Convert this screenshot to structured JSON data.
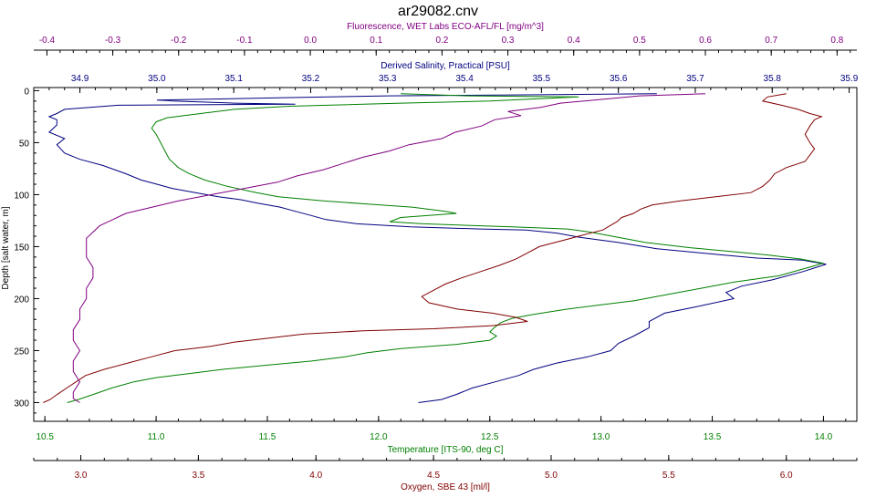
{
  "chart_data": {
    "type": "line",
    "title": "ar29082.cnv",
    "grid": false,
    "legend": "none",
    "y_axis": {
      "label": "Depth [salt water, m]",
      "range": [
        -3,
        318
      ],
      "inverted": true,
      "ticks": [
        0,
        50,
        100,
        150,
        200,
        250,
        300
      ]
    },
    "x_axes": [
      {
        "id": "fluor",
        "position": "top-outer",
        "label": "Fluorescence, WET Labs ECO-AFL/FL [mg/m^3]",
        "color": "#800080",
        "range": [
          -0.42,
          0.83
        ],
        "ticks": [
          -0.4,
          -0.3,
          -0.2,
          -0.1,
          0.0,
          0.1,
          0.2,
          0.3,
          0.4,
          0.5,
          0.6,
          0.7,
          0.8
        ],
        "tick_labels": [
          "-0.4",
          "-0.3",
          "-0.2",
          "-0.1",
          "0.0",
          "0.1",
          "0.2",
          "0.3",
          "0.4",
          "0.5",
          "0.6",
          "0.7",
          "0.8"
        ]
      },
      {
        "id": "sal",
        "position": "top-inner",
        "label": "Derived Salinity, Practical [PSU]",
        "color": "#000080",
        "range": [
          34.84,
          35.91
        ],
        "ticks": [
          34.9,
          35.0,
          35.1,
          35.2,
          35.3,
          35.4,
          35.5,
          35.6,
          35.7,
          35.8,
          35.9
        ],
        "tick_labels": [
          "34.9",
          "35.0",
          "35.1",
          "35.2",
          "35.3",
          "35.4",
          "35.5",
          "35.6",
          "35.7",
          "35.8",
          "35.9"
        ]
      },
      {
        "id": "temp",
        "position": "bottom-inner",
        "label": "Temperature [ITS-90, deg C]",
        "color": "#008000",
        "range": [
          10.45,
          14.15
        ],
        "ticks": [
          10.5,
          11.0,
          11.5,
          12.0,
          12.5,
          13.0,
          13.5,
          14.0
        ],
        "tick_labels": [
          "10.5",
          "11.0",
          "11.5",
          "12.0",
          "12.5",
          "13.0",
          "13.5",
          "14.0"
        ]
      },
      {
        "id": "oxy",
        "position": "bottom-outer",
        "label": "Oxygen, SBE 43 [ml/l]",
        "color": "#800000",
        "range": [
          2.8,
          6.3
        ],
        "ticks": [
          3.0,
          3.5,
          4.0,
          4.5,
          5.0,
          5.5,
          6.0
        ],
        "tick_labels": [
          "3.0",
          "3.5",
          "4.0",
          "4.5",
          "5.0",
          "5.5",
          "6.0"
        ]
      }
    ],
    "series": [
      {
        "axis": "sal",
        "color": "#000080",
        "points": [
          [
            35.65,
            3
          ],
          [
            35.48,
            4
          ],
          [
            35.3,
            5
          ],
          [
            35.15,
            7
          ],
          [
            35.0,
            9
          ],
          [
            35.02,
            10
          ],
          [
            35.1,
            12
          ],
          [
            35.18,
            13
          ],
          [
            34.95,
            14
          ],
          [
            34.88,
            18
          ],
          [
            34.87,
            22
          ],
          [
            34.86,
            25
          ],
          [
            34.87,
            28
          ],
          [
            34.87,
            33
          ],
          [
            34.86,
            40
          ],
          [
            34.88,
            46
          ],
          [
            34.87,
            52
          ],
          [
            34.88,
            60
          ],
          [
            34.9,
            66
          ],
          [
            34.93,
            72
          ],
          [
            34.96,
            80
          ],
          [
            34.98,
            86
          ],
          [
            35.0,
            90
          ],
          [
            35.02,
            94
          ],
          [
            35.05,
            98
          ],
          [
            35.08,
            102
          ],
          [
            35.11,
            105
          ],
          [
            35.13,
            108
          ],
          [
            35.16,
            112
          ],
          [
            35.18,
            116
          ],
          [
            35.2,
            120
          ],
          [
            35.22,
            124
          ],
          [
            35.26,
            128
          ],
          [
            35.33,
            131
          ],
          [
            35.42,
            133
          ],
          [
            35.48,
            134
          ],
          [
            35.52,
            137
          ],
          [
            35.55,
            141
          ],
          [
            35.6,
            146
          ],
          [
            35.65,
            152
          ],
          [
            35.72,
            157
          ],
          [
            35.78,
            161
          ],
          [
            35.84,
            163
          ],
          [
            35.87,
            167
          ],
          [
            35.84,
            174
          ],
          [
            35.8,
            182
          ],
          [
            35.76,
            188
          ],
          [
            35.74,
            194
          ],
          [
            35.75,
            200
          ],
          [
            35.7,
            208
          ],
          [
            35.66,
            214
          ],
          [
            35.64,
            222
          ],
          [
            35.64,
            228
          ],
          [
            35.62,
            236
          ],
          [
            35.6,
            243
          ],
          [
            35.59,
            250
          ],
          [
            35.56,
            256
          ],
          [
            35.52,
            262
          ],
          [
            35.49,
            268
          ],
          [
            35.47,
            274
          ],
          [
            35.44,
            280
          ],
          [
            35.41,
            286
          ],
          [
            35.39,
            292
          ],
          [
            35.37,
            297
          ],
          [
            35.34,
            300
          ]
        ]
      },
      {
        "axis": "temp",
        "color": "#008000",
        "points": [
          [
            12.1,
            3
          ],
          [
            12.4,
            5
          ],
          [
            12.9,
            6
          ],
          [
            12.7,
            8
          ],
          [
            12.5,
            10
          ],
          [
            12.1,
            12
          ],
          [
            11.6,
            15
          ],
          [
            11.35,
            18
          ],
          [
            11.2,
            22
          ],
          [
            11.05,
            26
          ],
          [
            11.0,
            30
          ],
          [
            10.98,
            36
          ],
          [
            11.0,
            42
          ],
          [
            11.02,
            50
          ],
          [
            11.04,
            58
          ],
          [
            11.06,
            66
          ],
          [
            11.1,
            74
          ],
          [
            11.15,
            80
          ],
          [
            11.22,
            86
          ],
          [
            11.32,
            92
          ],
          [
            11.45,
            98
          ],
          [
            11.55,
            102
          ],
          [
            11.75,
            106
          ],
          [
            11.95,
            109
          ],
          [
            12.15,
            112
          ],
          [
            12.3,
            116
          ],
          [
            12.35,
            118
          ],
          [
            12.1,
            122
          ],
          [
            12.05,
            126
          ],
          [
            12.2,
            128
          ],
          [
            12.6,
            131
          ],
          [
            12.85,
            133
          ],
          [
            12.95,
            136
          ],
          [
            13.05,
            140
          ],
          [
            13.2,
            146
          ],
          [
            13.4,
            151
          ],
          [
            13.6,
            155
          ],
          [
            13.75,
            158
          ],
          [
            13.9,
            162
          ],
          [
            14.0,
            166
          ],
          [
            13.9,
            172
          ],
          [
            13.8,
            178
          ],
          [
            13.6,
            184
          ],
          [
            13.45,
            190
          ],
          [
            13.3,
            196
          ],
          [
            13.15,
            202
          ],
          [
            13.0,
            206
          ],
          [
            12.85,
            210
          ],
          [
            12.7,
            215
          ],
          [
            12.6,
            219
          ],
          [
            12.55,
            223
          ],
          [
            12.52,
            228
          ],
          [
            12.5,
            232
          ],
          [
            12.53,
            236
          ],
          [
            12.5,
            240
          ],
          [
            12.35,
            244
          ],
          [
            12.1,
            248
          ],
          [
            11.95,
            252
          ],
          [
            11.85,
            256
          ],
          [
            11.7,
            260
          ],
          [
            11.5,
            264
          ],
          [
            11.3,
            268
          ],
          [
            11.15,
            272
          ],
          [
            11.0,
            276
          ],
          [
            10.9,
            280
          ],
          [
            10.8,
            286
          ],
          [
            10.72,
            292
          ],
          [
            10.65,
            297
          ],
          [
            10.6,
            300
          ]
        ]
      },
      {
        "axis": "oxy",
        "color": "#800000",
        "points": [
          [
            6.0,
            3
          ],
          [
            5.92,
            6
          ],
          [
            5.9,
            10
          ],
          [
            5.98,
            14
          ],
          [
            6.05,
            18
          ],
          [
            6.1,
            22
          ],
          [
            6.15,
            25
          ],
          [
            6.12,
            28
          ],
          [
            6.1,
            34
          ],
          [
            6.08,
            42
          ],
          [
            6.1,
            50
          ],
          [
            6.12,
            56
          ],
          [
            6.1,
            62
          ],
          [
            6.08,
            68
          ],
          [
            6.0,
            74
          ],
          [
            5.95,
            80
          ],
          [
            5.93,
            86
          ],
          [
            5.9,
            92
          ],
          [
            5.85,
            98
          ],
          [
            5.7,
            102
          ],
          [
            5.55,
            106
          ],
          [
            5.43,
            110
          ],
          [
            5.38,
            114
          ],
          [
            5.35,
            118
          ],
          [
            5.3,
            122
          ],
          [
            5.28,
            126
          ],
          [
            5.25,
            130
          ],
          [
            5.22,
            134
          ],
          [
            5.15,
            138
          ],
          [
            5.05,
            144
          ],
          [
            4.95,
            150
          ],
          [
            4.9,
            156
          ],
          [
            4.85,
            162
          ],
          [
            4.78,
            168
          ],
          [
            4.7,
            174
          ],
          [
            4.62,
            180
          ],
          [
            4.55,
            186
          ],
          [
            4.5,
            192
          ],
          [
            4.45,
            198
          ],
          [
            4.48,
            204
          ],
          [
            4.6,
            210
          ],
          [
            4.75,
            214
          ],
          [
            4.85,
            218
          ],
          [
            4.9,
            222
          ],
          [
            4.75,
            226
          ],
          [
            4.5,
            229
          ],
          [
            4.2,
            231
          ],
          [
            3.95,
            234
          ],
          [
            3.8,
            238
          ],
          [
            3.65,
            242
          ],
          [
            3.55,
            246
          ],
          [
            3.4,
            250
          ],
          [
            3.3,
            256
          ],
          [
            3.2,
            262
          ],
          [
            3.1,
            268
          ],
          [
            3.02,
            274
          ],
          [
            2.98,
            280
          ],
          [
            2.94,
            286
          ],
          [
            2.9,
            292
          ],
          [
            2.87,
            297
          ],
          [
            2.84,
            300
          ]
        ]
      },
      {
        "axis": "fluor",
        "color": "#800080",
        "points": [
          [
            0.6,
            3
          ],
          [
            0.5,
            5
          ],
          [
            0.45,
            8
          ],
          [
            0.38,
            12
          ],
          [
            0.35,
            16
          ],
          [
            0.3,
            20
          ],
          [
            0.32,
            24
          ],
          [
            0.28,
            28
          ],
          [
            0.26,
            34
          ],
          [
            0.22,
            40
          ],
          [
            0.2,
            46
          ],
          [
            0.15,
            52
          ],
          [
            0.12,
            58
          ],
          [
            0.08,
            64
          ],
          [
            0.05,
            70
          ],
          [
            0.02,
            76
          ],
          [
            -0.02,
            82
          ],
          [
            -0.05,
            88
          ],
          [
            -0.1,
            94
          ],
          [
            -0.15,
            100
          ],
          [
            -0.2,
            106
          ],
          [
            -0.24,
            112
          ],
          [
            -0.28,
            118
          ],
          [
            -0.3,
            124
          ],
          [
            -0.32,
            130
          ],
          [
            -0.33,
            136
          ],
          [
            -0.34,
            142
          ],
          [
            -0.34,
            150
          ],
          [
            -0.34,
            160
          ],
          [
            -0.33,
            170
          ],
          [
            -0.33,
            180
          ],
          [
            -0.34,
            190
          ],
          [
            -0.34,
            200
          ],
          [
            -0.35,
            210
          ],
          [
            -0.35,
            220
          ],
          [
            -0.36,
            230
          ],
          [
            -0.36,
            240
          ],
          [
            -0.35,
            250
          ],
          [
            -0.36,
            260
          ],
          [
            -0.36,
            270
          ],
          [
            -0.35,
            280
          ],
          [
            -0.36,
            290
          ],
          [
            -0.36,
            296
          ],
          [
            -0.35,
            300
          ]
        ]
      }
    ]
  }
}
